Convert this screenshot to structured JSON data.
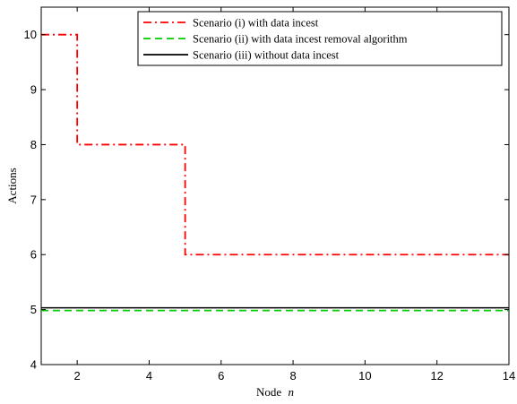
{
  "chart_data": {
    "type": "line",
    "xlabel": "Node",
    "xlabel_var": "n",
    "ylabel": "Actions",
    "xlim": [
      1,
      14
    ],
    "ylim": [
      4,
      10.5
    ],
    "xticks": [
      2,
      4,
      6,
      8,
      10,
      12,
      14
    ],
    "yticks": [
      4,
      5,
      6,
      7,
      8,
      9,
      10
    ],
    "grid": false,
    "legend_position": "top-right",
    "series": [
      {
        "name": "Scenario (i) with data incest",
        "color": "#ff0000",
        "style": "dash-dot",
        "step": "post",
        "x": [
          1,
          2,
          5,
          14
        ],
        "y": [
          10,
          8,
          6,
          6
        ]
      },
      {
        "name": "Scenario (ii) with data incest removal algorithm",
        "color": "#00cc00",
        "style": "dashed",
        "step": "post",
        "x": [
          1,
          14
        ],
        "y": [
          5,
          5
        ]
      },
      {
        "name": "Scenario (iii) without data incest",
        "color": "#000000",
        "style": "solid",
        "step": "post",
        "x": [
          1,
          14
        ],
        "y": [
          5,
          5
        ]
      }
    ]
  }
}
